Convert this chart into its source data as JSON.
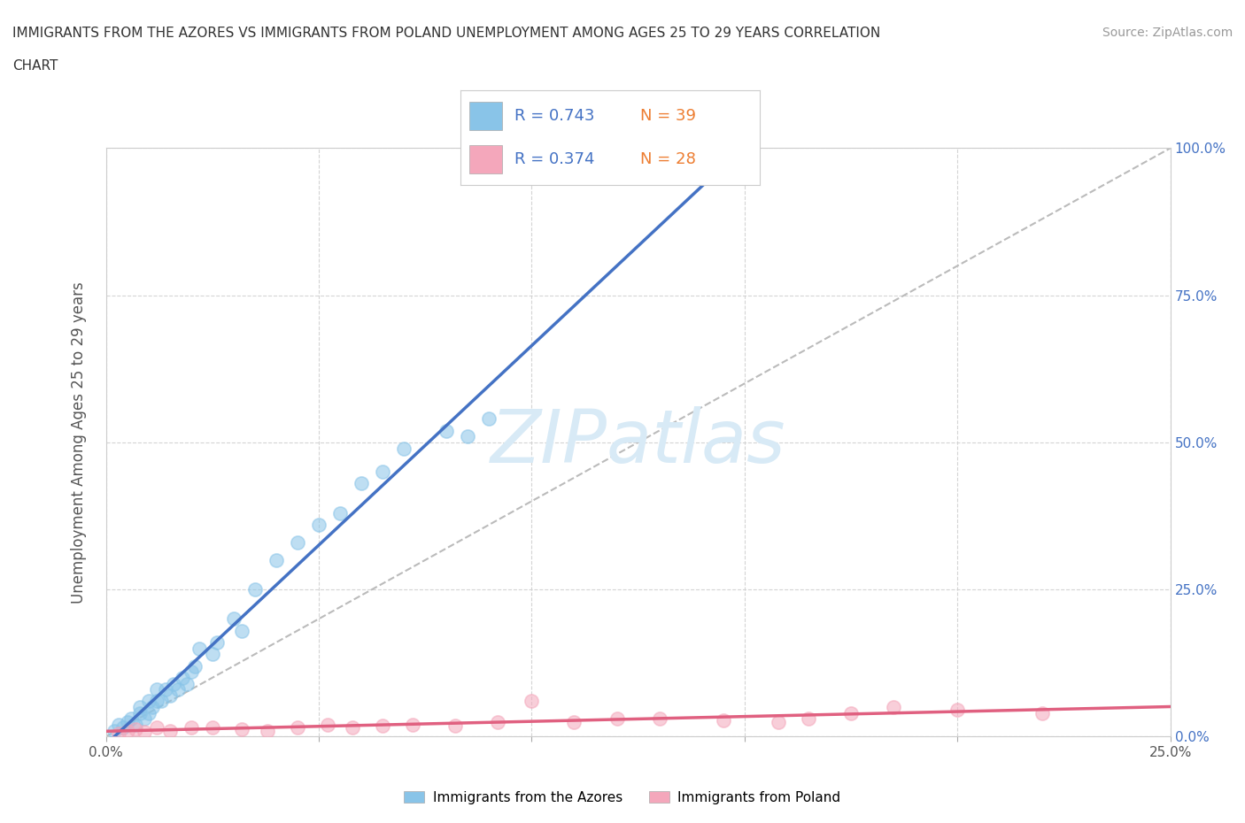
{
  "title_line1": "IMMIGRANTS FROM THE AZORES VS IMMIGRANTS FROM POLAND UNEMPLOYMENT AMONG AGES 25 TO 29 YEARS CORRELATION",
  "title_line2": "CHART",
  "source": "Source: ZipAtlas.com",
  "ylabel": "Unemployment Among Ages 25 to 29 years",
  "xlim": [
    0.0,
    0.25
  ],
  "ylim": [
    0.0,
    1.0
  ],
  "xticks": [
    0.0,
    0.05,
    0.1,
    0.15,
    0.2,
    0.25
  ],
  "yticks": [
    0.0,
    0.25,
    0.5,
    0.75,
    1.0
  ],
  "xtick_labels_left": [
    "0.0%",
    "",
    "",
    "",
    "",
    ""
  ],
  "xtick_labels_right": [
    "",
    "",
    "",
    "",
    "",
    "25.0%"
  ],
  "ytick_labels_right": [
    "0.0%",
    "25.0%",
    "50.0%",
    "75.0%",
    "100.0%"
  ],
  "azores_color": "#89c4e8",
  "azores_line_color": "#4472c4",
  "poland_color": "#f4a7bb",
  "poland_line_color": "#e06080",
  "azores_R": 0.743,
  "azores_N": 39,
  "poland_R": 0.374,
  "poland_N": 28,
  "legend_label_azores": "Immigrants from the Azores",
  "legend_label_poland": "Immigrants from Poland",
  "legend_R_color": "#4472c4",
  "legend_N_color": "#ed7d31",
  "background_color": "#ffffff",
  "grid_color": "#d0d0d0",
  "watermark": "ZIPatlas",
  "ref_line_color": "#bbbbbb",
  "azores_x": [
    0.002,
    0.003,
    0.004,
    0.005,
    0.006,
    0.007,
    0.008,
    0.008,
    0.009,
    0.01,
    0.01,
    0.011,
    0.012,
    0.012,
    0.013,
    0.014,
    0.015,
    0.016,
    0.017,
    0.018,
    0.019,
    0.02,
    0.021,
    0.022,
    0.025,
    0.026,
    0.03,
    0.032,
    0.035,
    0.04,
    0.045,
    0.05,
    0.055,
    0.06,
    0.065,
    0.07,
    0.08,
    0.085,
    0.09
  ],
  "azores_y": [
    0.01,
    0.02,
    0.015,
    0.025,
    0.03,
    0.02,
    0.04,
    0.05,
    0.03,
    0.04,
    0.06,
    0.05,
    0.06,
    0.08,
    0.06,
    0.08,
    0.07,
    0.09,
    0.08,
    0.1,
    0.09,
    0.11,
    0.12,
    0.15,
    0.14,
    0.16,
    0.2,
    0.18,
    0.25,
    0.3,
    0.33,
    0.36,
    0.38,
    0.43,
    0.45,
    0.49,
    0.52,
    0.51,
    0.54
  ],
  "poland_x": [
    0.003,
    0.005,
    0.007,
    0.009,
    0.012,
    0.015,
    0.02,
    0.025,
    0.032,
    0.038,
    0.045,
    0.052,
    0.058,
    0.065,
    0.072,
    0.082,
    0.092,
    0.1,
    0.11,
    0.12,
    0.13,
    0.145,
    0.158,
    0.165,
    0.175,
    0.185,
    0.2,
    0.22
  ],
  "poland_y": [
    0.005,
    0.01,
    0.012,
    0.008,
    0.015,
    0.01,
    0.015,
    0.015,
    0.012,
    0.01,
    0.015,
    0.02,
    0.015,
    0.018,
    0.02,
    0.018,
    0.025,
    0.06,
    0.025,
    0.03,
    0.03,
    0.028,
    0.025,
    0.03,
    0.04,
    0.05,
    0.045,
    0.04
  ]
}
